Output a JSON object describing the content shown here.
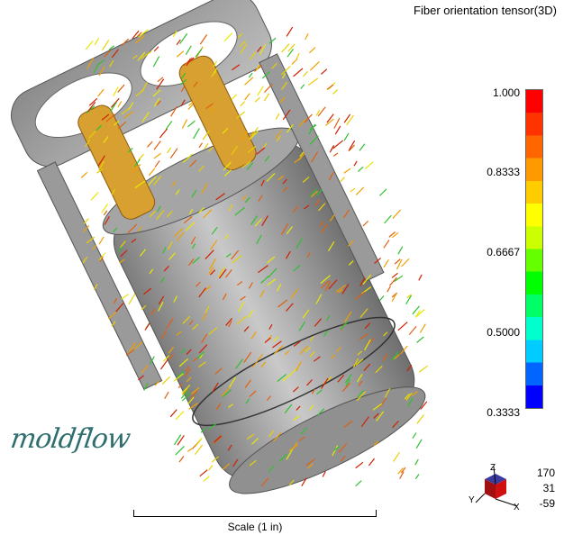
{
  "title": "Fiber orientation tensor(3D)",
  "legend": {
    "labels": [
      "1.000",
      "0.8333",
      "0.6667",
      "0.5000",
      "0.3333"
    ],
    "colors": [
      "#0000ff",
      "#0066ff",
      "#00ccff",
      "#00ffcc",
      "#00ff66",
      "#00ff00",
      "#66ff00",
      "#ccff00",
      "#ffff00",
      "#ffcc00",
      "#ff9900",
      "#ff6600",
      "#ff3300",
      "#ff0000"
    ]
  },
  "brand": "moldflow",
  "scale": {
    "label": "Scale (1 in)"
  },
  "rotation": [
    "170",
    "31",
    "-59"
  ],
  "axes": {
    "x": "X",
    "y": "Y",
    "z": "Z"
  },
  "icons": [
    "part-model",
    "axis-triad"
  ]
}
